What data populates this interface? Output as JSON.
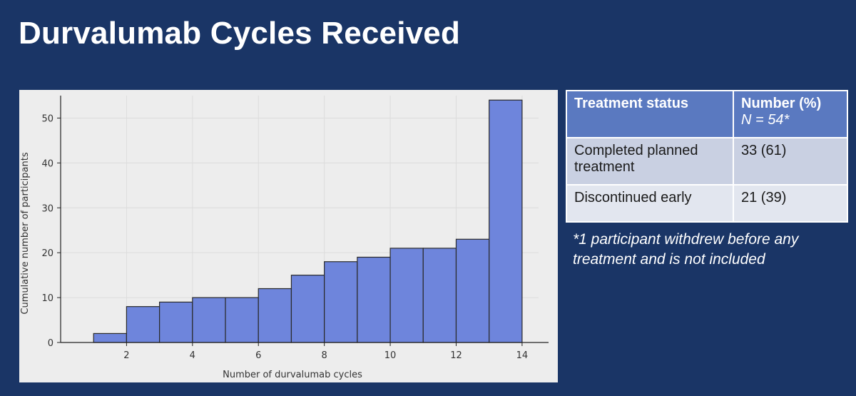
{
  "title": "Durvalumab Cycles Received",
  "chart_data": {
    "type": "bar",
    "subtype": "histogram",
    "title": "",
    "xlabel": "Number of durvalumab cycles",
    "ylabel": "Cumulative number of participants",
    "bins": [
      [
        1,
        2
      ],
      [
        2,
        3
      ],
      [
        3,
        4
      ],
      [
        4,
        5
      ],
      [
        5,
        6
      ],
      [
        6,
        7
      ],
      [
        7,
        8
      ],
      [
        8,
        9
      ],
      [
        9,
        10
      ],
      [
        10,
        11
      ],
      [
        11,
        12
      ],
      [
        12,
        13
      ],
      [
        13,
        14
      ]
    ],
    "values": [
      2,
      8,
      9,
      10,
      10,
      12,
      15,
      18,
      19,
      21,
      21,
      23,
      54
    ],
    "xlim": [
      0,
      14.5
    ],
    "ylim": [
      0,
      55
    ],
    "xticks": [
      2,
      4,
      6,
      8,
      10,
      12,
      14
    ],
    "yticks": [
      0,
      10,
      20,
      30,
      40,
      50
    ],
    "grid": true,
    "bar_color": "#6e85dc"
  },
  "table": {
    "headers": [
      "Treatment status",
      "Number (%)"
    ],
    "header_sub": "N = 54*",
    "rows": [
      {
        "status": "Completed planned treatment",
        "number": "33 (61)"
      },
      {
        "status": "Discontinued early",
        "number": "21 (39)"
      }
    ]
  },
  "footnote": "*1 participant withdrew before any treatment and is not included"
}
